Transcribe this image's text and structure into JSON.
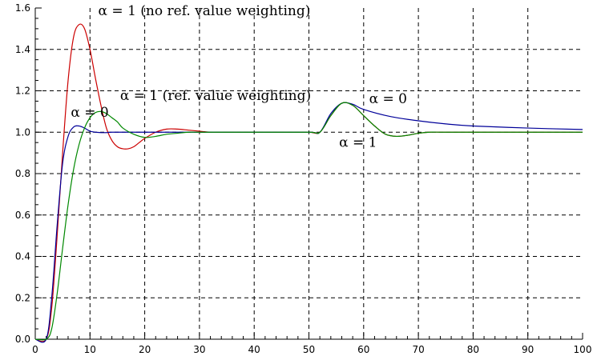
{
  "chart_data": {
    "type": "line",
    "title": "",
    "xlabel": "",
    "ylabel": "",
    "xlim": [
      0,
      100
    ],
    "ylim": [
      0,
      1.6
    ],
    "grid": true,
    "x_ticks": [
      "0",
      "10",
      "20",
      "30",
      "40",
      "50",
      "60",
      "70",
      "80",
      "90",
      "100"
    ],
    "y_ticks": [
      "0.0",
      "0.2",
      "0.4",
      "0.6",
      "0.8",
      "1.0",
      "1.2",
      "1.4",
      "1.6"
    ],
    "series": [
      {
        "color": "#cc0000",
        "x": [
          0,
          2,
          3,
          4,
          5,
          6,
          7,
          8,
          9,
          10,
          11,
          12,
          13,
          14,
          15,
          16,
          17,
          18,
          19,
          20,
          22,
          24,
          26,
          28,
          30,
          32,
          35,
          40,
          45,
          50,
          52,
          54,
          56,
          58,
          60,
          62,
          64,
          66,
          68,
          70,
          72,
          74,
          76,
          80,
          90,
          100
        ],
        "y": [
          0,
          0,
          0.15,
          0.5,
          0.9,
          1.25,
          1.46,
          1.52,
          1.5,
          1.4,
          1.26,
          1.13,
          1.02,
          0.96,
          0.93,
          0.92,
          0.92,
          0.93,
          0.95,
          0.97,
          1.0,
          1.015,
          1.015,
          1.01,
          1.005,
          1.0,
          1.0,
          1.0,
          1.0,
          1.0,
          1.0,
          1.08,
          1.14,
          1.13,
          1.08,
          1.03,
          0.99,
          0.98,
          0.985,
          0.995,
          1.0,
          1.0,
          1.0,
          1.0,
          1.0,
          1.0
        ]
      },
      {
        "color": "#000099",
        "x": [
          0,
          2,
          3,
          4,
          5,
          6,
          7,
          8,
          9,
          10,
          11,
          12,
          13,
          14,
          16,
          20,
          30,
          40,
          50,
          52,
          54,
          56,
          58,
          60,
          65,
          70,
          75,
          80,
          90,
          100
        ],
        "y": [
          0,
          0,
          0.2,
          0.55,
          0.85,
          0.98,
          1.025,
          1.03,
          1.02,
          1.005,
          1.0,
          0.998,
          0.998,
          1.0,
          1.0,
          1.0,
          1.0,
          1.0,
          1.0,
          1.0,
          1.09,
          1.14,
          1.135,
          1.11,
          1.075,
          1.055,
          1.04,
          1.03,
          1.02,
          1.013
        ]
      },
      {
        "color": "#008800",
        "x": [
          0,
          2,
          3,
          4,
          5,
          6,
          7,
          8,
          9,
          10,
          11,
          12,
          13,
          14,
          15,
          16,
          18,
          20,
          22,
          24,
          26,
          28,
          30,
          35,
          40,
          50,
          52,
          54,
          56,
          58,
          60,
          62,
          64,
          66,
          68,
          70,
          72,
          74,
          76,
          80,
          90,
          100
        ],
        "y": [
          0,
          0,
          0.05,
          0.22,
          0.44,
          0.65,
          0.82,
          0.94,
          1.02,
          1.07,
          1.095,
          1.1,
          1.09,
          1.07,
          1.05,
          1.02,
          0.99,
          0.975,
          0.98,
          0.99,
          0.995,
          1.0,
          1.0,
          1.0,
          1.0,
          1.0,
          1.0,
          1.08,
          1.14,
          1.13,
          1.08,
          1.03,
          0.99,
          0.98,
          0.985,
          0.995,
          1.0,
          1.0,
          1.0,
          1.0,
          1.0,
          1.0
        ]
      }
    ],
    "annotations": [
      {
        "text": "α = 1  (no ref. value weighting)",
        "x": 11.5,
        "y": 1.565
      },
      {
        "text": "α = 1  (ref. value weighting)",
        "x": 15.5,
        "y": 1.155
      },
      {
        "text": "α = 0",
        "x": 6.5,
        "y": 1.075
      },
      {
        "text": "α = 0",
        "x": 61,
        "y": 1.14
      },
      {
        "text": "α = 1",
        "x": 55.5,
        "y": 0.93
      }
    ]
  }
}
